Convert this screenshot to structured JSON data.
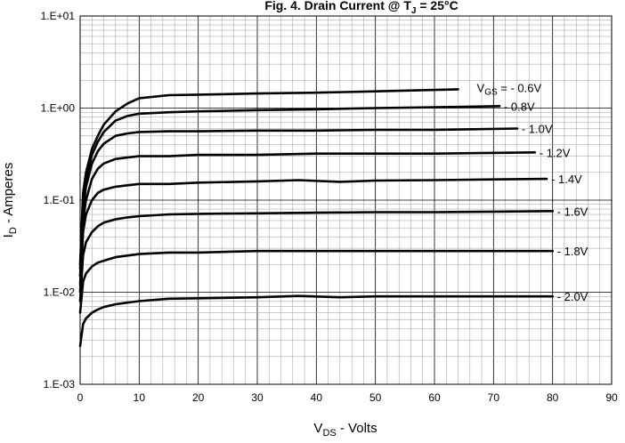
{
  "chart_data": {
    "type": "line",
    "title": {
      "main": "Fig. 4. Drain Current @ T",
      "sub": "J",
      "rest": " = 25°C"
    },
    "xlabel": {
      "main": "V",
      "sub": "DS",
      "rest": " - Volts"
    },
    "ylabel": {
      "main": "I",
      "sub": "D",
      "rest": " - Amperes"
    },
    "xlim": [
      0,
      90
    ],
    "ylim": [
      0.001,
      10
    ],
    "yscale": "log",
    "grid": true,
    "x_ticks": [
      "0",
      "10",
      "20",
      "30",
      "40",
      "50",
      "60",
      "70",
      "80",
      "90"
    ],
    "y_ticks": [
      "1.E-03",
      "1.E-02",
      "1.E-01",
      "1.E+00",
      "1.E+01"
    ],
    "series": [
      {
        "name": "- 0.6V",
        "label_main": "V",
        "label_sub": "GS",
        "label_rest": " = - 0.6V",
        "x": [
          0,
          0.5,
          1,
          2,
          3,
          4,
          6,
          8,
          10,
          15,
          20,
          30,
          40,
          50,
          64
        ],
        "y": [
          0.02,
          0.12,
          0.2,
          0.36,
          0.5,
          0.66,
          0.92,
          1.12,
          1.28,
          1.38,
          1.4,
          1.44,
          1.47,
          1.52,
          1.6
        ]
      },
      {
        "name": "- 0.8V",
        "x": [
          0,
          0.5,
          1,
          2,
          3,
          4,
          6,
          8,
          10,
          15,
          20,
          30,
          40,
          50,
          60,
          71
        ],
        "y": [
          0.018,
          0.1,
          0.17,
          0.31,
          0.43,
          0.55,
          0.73,
          0.82,
          0.87,
          0.9,
          0.92,
          0.95,
          0.97,
          1.0,
          1.02,
          1.05
        ]
      },
      {
        "name": "- 1.0V",
        "x": [
          0,
          0.5,
          1,
          2,
          3,
          4,
          6,
          8,
          10,
          15,
          20,
          30,
          40,
          50,
          60,
          74
        ],
        "y": [
          0.015,
          0.08,
          0.14,
          0.25,
          0.34,
          0.41,
          0.5,
          0.53,
          0.55,
          0.56,
          0.56,
          0.57,
          0.57,
          0.58,
          0.58,
          0.6
        ]
      },
      {
        "name": "- 1.2V",
        "x": [
          0,
          0.5,
          1,
          2,
          3,
          4,
          6,
          8,
          10,
          15,
          20,
          30,
          40,
          50,
          60,
          77
        ],
        "y": [
          0.012,
          0.06,
          0.1,
          0.17,
          0.22,
          0.25,
          0.28,
          0.29,
          0.3,
          0.3,
          0.31,
          0.31,
          0.32,
          0.32,
          0.32,
          0.33
        ]
      },
      {
        "name": "- 1.4V",
        "x": [
          0,
          0.5,
          1,
          2,
          3,
          4,
          6,
          8,
          10,
          15,
          20,
          30,
          37,
          44,
          50,
          60,
          70,
          79
        ],
        "y": [
          0.01,
          0.045,
          0.07,
          0.1,
          0.12,
          0.13,
          0.14,
          0.145,
          0.15,
          0.15,
          0.155,
          0.16,
          0.165,
          0.158,
          0.163,
          0.165,
          0.168,
          0.17
        ]
      },
      {
        "name": "- 1.6V",
        "x": [
          0,
          0.5,
          1,
          2,
          3,
          4,
          6,
          8,
          10,
          15,
          20,
          30,
          40,
          50,
          60,
          70,
          80
        ],
        "y": [
          0.008,
          0.025,
          0.035,
          0.045,
          0.052,
          0.057,
          0.062,
          0.065,
          0.067,
          0.07,
          0.071,
          0.072,
          0.073,
          0.074,
          0.074,
          0.075,
          0.076
        ]
      },
      {
        "name": "- 1.8V",
        "x": [
          0,
          0.5,
          1,
          2,
          3,
          4,
          6,
          8,
          10,
          15,
          20,
          30,
          40,
          50,
          60,
          70,
          80
        ],
        "y": [
          0.006,
          0.013,
          0.016,
          0.019,
          0.021,
          0.022,
          0.024,
          0.025,
          0.026,
          0.027,
          0.027,
          0.028,
          0.028,
          0.028,
          0.028,
          0.028,
          0.028
        ]
      },
      {
        "name": "- 2.0V",
        "x": [
          0,
          0.5,
          1,
          2,
          3,
          4,
          6,
          8,
          10,
          15,
          20,
          30,
          37,
          44,
          50,
          60,
          70,
          80
        ],
        "y": [
          0.0026,
          0.0045,
          0.0052,
          0.006,
          0.0065,
          0.0069,
          0.0074,
          0.0077,
          0.008,
          0.0085,
          0.0086,
          0.0088,
          0.0091,
          0.0088,
          0.009,
          0.009,
          0.009,
          0.009
        ]
      }
    ]
  }
}
